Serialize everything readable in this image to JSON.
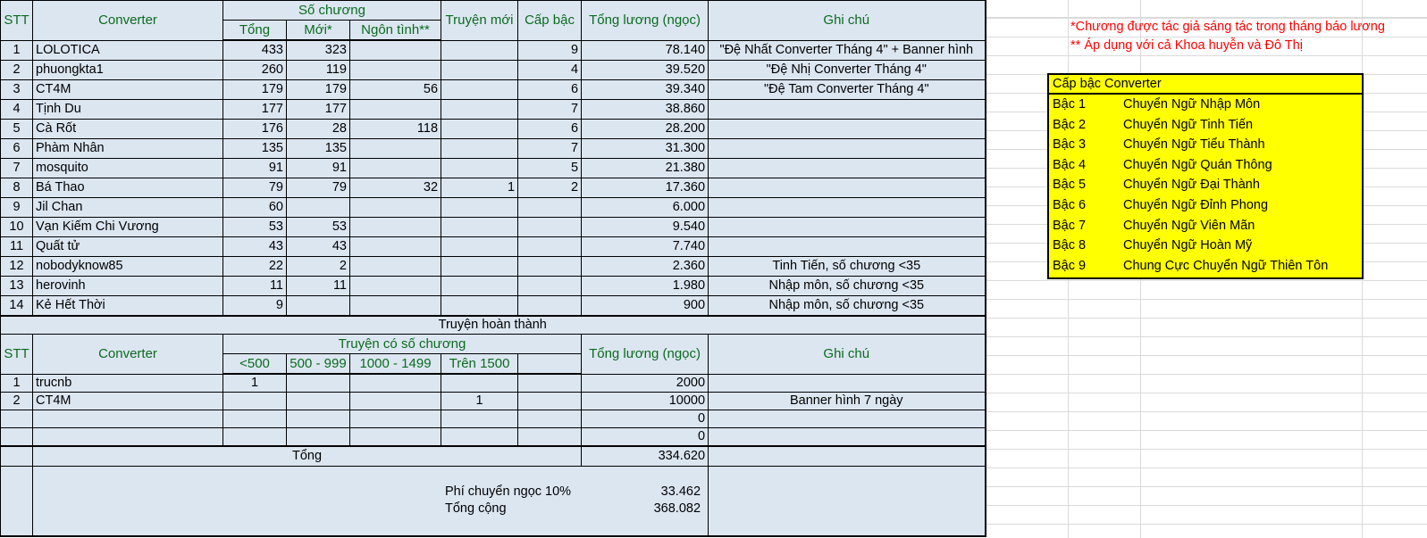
{
  "main_table": {
    "headers": {
      "stt": "STT",
      "converter": "Converter",
      "so_chuong": "Số chương",
      "tong": "Tổng",
      "moi": "Mới*",
      "ngon_tinh": "Ngôn tình**",
      "truyen_moi": "Truyện mới",
      "cap_bac": "Cấp bậc",
      "tong_luong": "Tổng lương (ngọc)",
      "ghi_chu": "Ghi chú"
    },
    "rows": [
      {
        "stt": "1",
        "name": "LOLOTICA",
        "tong": "433",
        "moi": "323",
        "ngon_tinh": "",
        "truyen_moi": "",
        "cap_bac": "9",
        "luong": "78.140",
        "ghi_chu": "\"Đệ Nhất Converter Tháng 4\" + Banner hình"
      },
      {
        "stt": "2",
        "name": "phuongkta1",
        "tong": "260",
        "moi": "119",
        "ngon_tinh": "",
        "truyen_moi": "",
        "cap_bac": "4",
        "luong": "39.520",
        "ghi_chu": "\"Đệ Nhị Converter Tháng 4\""
      },
      {
        "stt": "3",
        "name": "CT4M",
        "tong": "179",
        "moi": "179",
        "ngon_tinh": "56",
        "truyen_moi": "",
        "cap_bac": "6",
        "luong": "39.340",
        "ghi_chu": "\"Đệ Tam Converter Tháng 4\""
      },
      {
        "stt": "4",
        "name": "Tịnh Du",
        "tong": "177",
        "moi": "177",
        "ngon_tinh": "",
        "truyen_moi": "",
        "cap_bac": "7",
        "luong": "38.860",
        "ghi_chu": ""
      },
      {
        "stt": "5",
        "name": "Cà Rốt",
        "tong": "176",
        "moi": "28",
        "ngon_tinh": "118",
        "truyen_moi": "",
        "cap_bac": "6",
        "luong": "28.200",
        "ghi_chu": ""
      },
      {
        "stt": "6",
        "name": "Phàm Nhân",
        "tong": "135",
        "moi": "135",
        "ngon_tinh": "",
        "truyen_moi": "",
        "cap_bac": "7",
        "luong": "31.300",
        "ghi_chu": ""
      },
      {
        "stt": "7",
        "name": "mosquito",
        "tong": "91",
        "moi": "91",
        "ngon_tinh": "",
        "truyen_moi": "",
        "cap_bac": "5",
        "luong": "21.380",
        "ghi_chu": ""
      },
      {
        "stt": "8",
        "name": "Bá Thao",
        "tong": "79",
        "moi": "79",
        "ngon_tinh": "32",
        "truyen_moi": "1",
        "cap_bac": "2",
        "luong": "17.360",
        "ghi_chu": ""
      },
      {
        "stt": "9",
        "name": "Jil Chan",
        "tong": "60",
        "moi": "",
        "ngon_tinh": "",
        "truyen_moi": "",
        "cap_bac": "",
        "luong": "6.000",
        "ghi_chu": ""
      },
      {
        "stt": "10",
        "name": "Vạn Kiếm Chi Vương",
        "tong": "53",
        "moi": "53",
        "ngon_tinh": "",
        "truyen_moi": "",
        "cap_bac": "",
        "luong": "9.540",
        "ghi_chu": ""
      },
      {
        "stt": "11",
        "name": "Quất tử",
        "tong": "43",
        "moi": "43",
        "ngon_tinh": "",
        "truyen_moi": "",
        "cap_bac": "",
        "luong": "7.740",
        "ghi_chu": ""
      },
      {
        "stt": "12",
        "name": "nobodyknow85",
        "tong": "22",
        "moi": "2",
        "ngon_tinh": "",
        "truyen_moi": "",
        "cap_bac": "",
        "luong": "2.360",
        "ghi_chu": "Tinh Tiến, số chương <35"
      },
      {
        "stt": "13",
        "name": "herovinh",
        "tong": "11",
        "moi": "11",
        "ngon_tinh": "",
        "truyen_moi": "",
        "cap_bac": "",
        "luong": "1.980",
        "ghi_chu": "Nhập môn, số chương <35"
      },
      {
        "stt": "14",
        "name": "Kẻ Hết Thời",
        "tong": "9",
        "moi": "",
        "ngon_tinh": "",
        "truyen_moi": "",
        "cap_bac": "",
        "luong": "900",
        "ghi_chu": "Nhập môn, số chương <35"
      }
    ]
  },
  "completed_table": {
    "section_title": "Truyện hoàn thành",
    "headers": {
      "stt": "STT",
      "converter": "Converter",
      "group": "Truyện có số chương",
      "c1": "<500",
      "c2": "500 - 999",
      "c3": "1000 - 1499",
      "c4": "Trên 1500",
      "c5": "",
      "tong_luong": "Tổng lương (ngọc)",
      "ghi_chu": "Ghi chú"
    },
    "rows": [
      {
        "stt": "1",
        "name": "trucnb",
        "c1": "1",
        "c2": "",
        "c3": "",
        "c4": "",
        "c5": "",
        "luong": "2000",
        "ghi_chu": ""
      },
      {
        "stt": "2",
        "name": "CT4M",
        "c1": "",
        "c2": "",
        "c3": "",
        "c4": "1",
        "c5": "",
        "luong": "10000",
        "ghi_chu": "Banner hình 7 ngày"
      },
      {
        "stt": "",
        "name": "",
        "c1": "",
        "c2": "",
        "c3": "",
        "c4": "",
        "c5": "",
        "luong": "0",
        "ghi_chu": ""
      },
      {
        "stt": "",
        "name": "",
        "c1": "",
        "c2": "",
        "c3": "",
        "c4": "",
        "c5": "",
        "luong": "0",
        "ghi_chu": ""
      }
    ]
  },
  "totals": {
    "tong_label": "Tổng",
    "tong_value": "334.620",
    "fee_label": "Phí chuyển ngọc 10%",
    "fee_value": "33.462",
    "grand_label": "Tổng cộng",
    "grand_value": "368.082"
  },
  "notes": [
    "*Chương được tác giả sáng tác trong tháng báo lương",
    "** Áp dụng với cả Khoa huyễn và Đô Thị"
  ],
  "ranks": {
    "title": "Cấp bậc Converter",
    "items": [
      {
        "level": "Bậc 1",
        "name": "Chuyển Ngữ Nhập Môn"
      },
      {
        "level": "Bậc 2",
        "name": "Chuyển Ngữ Tinh Tiến"
      },
      {
        "level": "Bậc 3",
        "name": "Chuyển Ngữ Tiểu Thành"
      },
      {
        "level": "Bậc 4",
        "name": "Chuyển Ngữ Quán Thông"
      },
      {
        "level": "Bậc 5",
        "name": "Chuyển Ngữ Đại Thành"
      },
      {
        "level": "Bậc 6",
        "name": "Chuyển Ngữ Đỉnh Phong"
      },
      {
        "level": "Bậc 7",
        "name": "Chuyển Ngữ Viên Mãn"
      },
      {
        "level": "Bậc 8",
        "name": "Chuyển Ngữ Hoàn Mỹ"
      },
      {
        "level": "Bậc 9",
        "name": "Chung Cực Chuyển Ngữ Thiên Tôn"
      }
    ]
  },
  "colors": {
    "header_bg": "#ffff00",
    "header_text": "#0b6b1e",
    "row_bg": "#dce6f1",
    "note_text": "#ff0000"
  }
}
